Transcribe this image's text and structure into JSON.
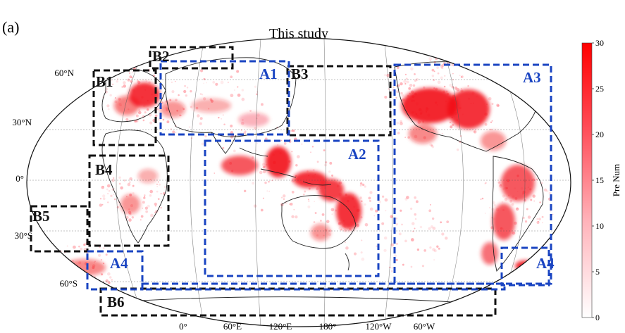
{
  "panel_label": "(a)",
  "title": "This study",
  "lat_labels": [
    "60°N",
    "30°N",
    "0°",
    "30°S",
    "60°S"
  ],
  "lon_labels": [
    "0°",
    "60°E",
    "120°E",
    "180°",
    "120°W",
    "60°W"
  ],
  "colorbar": {
    "label": "Pre Num",
    "ticks": [
      "0",
      "5",
      "10",
      "15",
      "20",
      "25",
      "30"
    ],
    "min": 0,
    "max": 30,
    "color_low": "#ffffff",
    "color_high": "#ff0000"
  },
  "region_boxes": {
    "A": [
      "A1",
      "A2",
      "A3",
      "A4",
      "A4"
    ],
    "B": [
      "B1",
      "B2",
      "B3",
      "B4",
      "B5",
      "B6"
    ]
  },
  "colors": {
    "A_boxes": "#1a44c2",
    "B_boxes": "#111111",
    "hotspot": "#f2101a",
    "coastline": "#222222",
    "graticule": "#555555"
  }
}
